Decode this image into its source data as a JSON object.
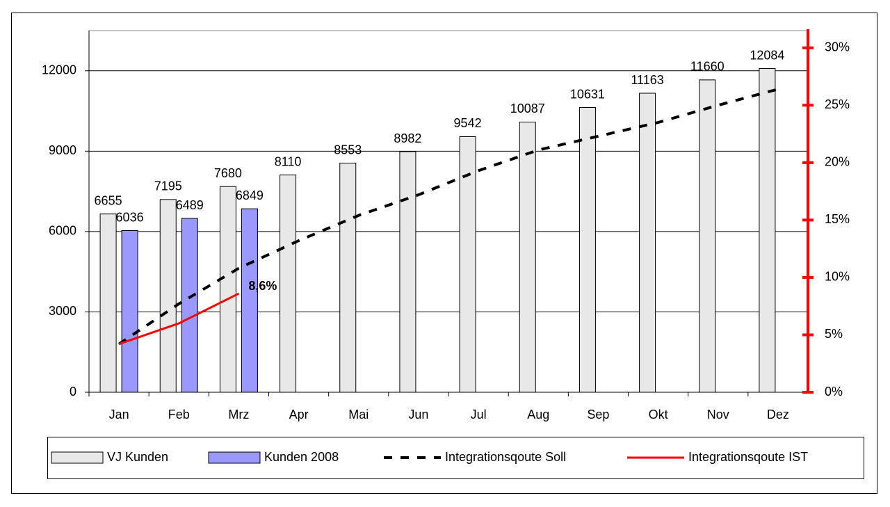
{
  "chart_data": {
    "type": "bar-line",
    "categories": [
      "Jan",
      "Feb",
      "Mrz",
      "Apr",
      "Mai",
      "Jun",
      "Jul",
      "Aug",
      "Sep",
      "Okt",
      "Nov",
      "Dez"
    ],
    "series": [
      {
        "name": "VJ Kunden",
        "type": "bar",
        "color": "#e8e8e8",
        "values": [
          6655,
          7195,
          7680,
          8110,
          8553,
          8982,
          9542,
          10087,
          10631,
          11163,
          11660,
          12084
        ]
      },
      {
        "name": "Kunden 2008",
        "type": "bar",
        "color": "#9999ff",
        "values": [
          6036,
          6489,
          6849,
          null,
          null,
          null,
          null,
          null,
          null,
          null,
          null,
          null
        ]
      },
      {
        "name": "Integrationsqoute Soll",
        "type": "line",
        "dashed": true,
        "color": "#000000",
        "axis": "y2",
        "values": [
          4.2,
          7.7,
          10.8,
          13.2,
          15.4,
          17.2,
          19.3,
          21.1,
          22.3,
          23.5,
          25.0,
          26.4
        ]
      },
      {
        "name": "Integrationsqoute IST",
        "type": "line",
        "color": "#ff0000",
        "axis": "y2",
        "values": [
          4.2,
          6.0,
          8.6,
          null,
          null,
          null,
          null,
          null,
          null,
          null,
          null,
          null
        ],
        "value_labels": [
          null,
          null,
          "8,6%",
          null,
          null,
          null,
          null,
          null,
          null,
          null,
          null,
          null
        ]
      }
    ],
    "ylim": [
      0,
      13500
    ],
    "yticks": [
      0,
      3000,
      6000,
      9000,
      12000
    ],
    "y2lim": [
      0,
      31.5
    ],
    "y2ticks": [
      {
        "value": 0,
        "label": "0%"
      },
      {
        "value": 5,
        "label": "5%"
      },
      {
        "value": 10,
        "label": "10%"
      },
      {
        "value": 15,
        "label": "15%"
      },
      {
        "value": 20,
        "label": "20%"
      },
      {
        "value": 25,
        "label": "25%"
      },
      {
        "value": 30,
        "label": "30%"
      }
    ],
    "y2color": "#ff0000",
    "grid": true,
    "legend": "bottom"
  }
}
